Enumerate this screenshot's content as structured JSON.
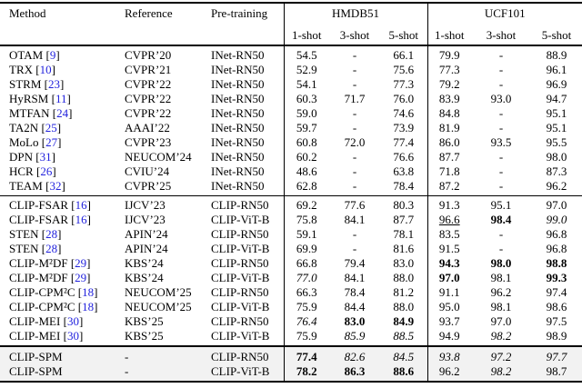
{
  "table": {
    "colors": {
      "cite": "#2222dd",
      "highlight": "#f2f2f2"
    },
    "columns": [
      "Method",
      "Reference",
      "Pre-training"
    ],
    "groups": [
      {
        "label": "HMDB51",
        "shots": [
          "1-shot",
          "3-shot",
          "5-shot"
        ]
      },
      {
        "label": "UCF101",
        "shots": [
          "1-shot",
          "3-shot",
          "5-shot"
        ]
      }
    ],
    "sections": [
      {
        "highlight": false,
        "rows": [
          {
            "method": "OTAM",
            "cite": "9",
            "reference": "CVPR’20",
            "pretraining": "INet-RN50",
            "values": [
              {
                "t": "54.5"
              },
              {
                "t": "-"
              },
              {
                "t": "66.1"
              },
              {
                "t": "79.9"
              },
              {
                "t": "-"
              },
              {
                "t": "88.9"
              }
            ]
          },
          {
            "method": "TRX",
            "cite": "10",
            "reference": "CVPR’21",
            "pretraining": "INet-RN50",
            "values": [
              {
                "t": "52.9"
              },
              {
                "t": "-"
              },
              {
                "t": "75.6"
              },
              {
                "t": "77.3"
              },
              {
                "t": "-"
              },
              {
                "t": "96.1"
              }
            ]
          },
          {
            "method": "STRM",
            "cite": "23",
            "reference": "CVPR’22",
            "pretraining": "INet-RN50",
            "values": [
              {
                "t": "54.1"
              },
              {
                "t": "-"
              },
              {
                "t": "77.3"
              },
              {
                "t": "79.2"
              },
              {
                "t": "-"
              },
              {
                "t": "96.9"
              }
            ]
          },
          {
            "method": "HyRSM",
            "cite": "11",
            "reference": "CVPR’22",
            "pretraining": "INet-RN50",
            "values": [
              {
                "t": "60.3"
              },
              {
                "t": "71.7"
              },
              {
                "t": "76.0"
              },
              {
                "t": "83.9"
              },
              {
                "t": "93.0"
              },
              {
                "t": "94.7"
              }
            ]
          },
          {
            "method": "MTFAN",
            "cite": "24",
            "reference": "CVPR’22",
            "pretraining": "INet-RN50",
            "values": [
              {
                "t": "59.0"
              },
              {
                "t": "-"
              },
              {
                "t": "74.6"
              },
              {
                "t": "84.8"
              },
              {
                "t": "-"
              },
              {
                "t": "95.1"
              }
            ]
          },
          {
            "method": "TA2N",
            "cite": "25",
            "reference": "AAAI’22",
            "pretraining": "INet-RN50",
            "values": [
              {
                "t": "59.7"
              },
              {
                "t": "-"
              },
              {
                "t": "73.9"
              },
              {
                "t": "81.9"
              },
              {
                "t": "-"
              },
              {
                "t": "95.1"
              }
            ]
          },
          {
            "method": "MoLo",
            "cite": "27",
            "reference": "CVPR’23",
            "pretraining": "INet-RN50",
            "values": [
              {
                "t": "60.8"
              },
              {
                "t": "72.0"
              },
              {
                "t": "77.4"
              },
              {
                "t": "86.0"
              },
              {
                "t": "93.5"
              },
              {
                "t": "95.5"
              }
            ]
          },
          {
            "method": "DPN",
            "cite": "31",
            "reference": "NEUCOM’24",
            "pretraining": "INet-RN50",
            "values": [
              {
                "t": "60.2"
              },
              {
                "t": "-"
              },
              {
                "t": "76.6"
              },
              {
                "t": "87.7"
              },
              {
                "t": "-"
              },
              {
                "t": "98.0"
              }
            ]
          },
          {
            "method": "HCR",
            "cite": "26",
            "reference": "CVIU’24",
            "pretraining": "INet-RN50",
            "values": [
              {
                "t": "48.6"
              },
              {
                "t": "-"
              },
              {
                "t": "63.8"
              },
              {
                "t": "71.8"
              },
              {
                "t": "-"
              },
              {
                "t": "87.3"
              }
            ]
          },
          {
            "method": "TEAM",
            "cite": "32",
            "reference": "CVPR’25",
            "pretraining": "INet-RN50",
            "values": [
              {
                "t": "62.8"
              },
              {
                "t": "-"
              },
              {
                "t": "78.4"
              },
              {
                "t": "87.2"
              },
              {
                "t": "-"
              },
              {
                "t": "96.2"
              }
            ]
          }
        ]
      },
      {
        "highlight": false,
        "rows": [
          {
            "method": "CLIP-FSAR",
            "cite": "16",
            "reference": "IJCV’23",
            "pretraining": "CLIP-RN50",
            "values": [
              {
                "t": "69.2"
              },
              {
                "t": "77.6"
              },
              {
                "t": "80.3"
              },
              {
                "t": "91.3"
              },
              {
                "t": "95.1"
              },
              {
                "t": "97.0"
              }
            ]
          },
          {
            "method": "CLIP-FSAR",
            "cite": "16",
            "reference": "IJCV’23",
            "pretraining": "CLIP-ViT-B",
            "values": [
              {
                "t": "75.8"
              },
              {
                "t": "84.1"
              },
              {
                "t": "87.7"
              },
              {
                "t": "96.6",
                "s": "u"
              },
              {
                "t": "98.4",
                "s": "b"
              },
              {
                "t": "99.0",
                "s": "i"
              }
            ]
          },
          {
            "method": "STEN",
            "cite": "28",
            "reference": "APIN’24",
            "pretraining": "CLIP-RN50",
            "values": [
              {
                "t": "59.1"
              },
              {
                "t": "-"
              },
              {
                "t": "78.1"
              },
              {
                "t": "83.5"
              },
              {
                "t": "-"
              },
              {
                "t": "96.8"
              }
            ]
          },
          {
            "method": "STEN",
            "cite": "28",
            "reference": "APIN’24",
            "pretraining": "CLIP-ViT-B",
            "values": [
              {
                "t": "69.9"
              },
              {
                "t": "-"
              },
              {
                "t": "81.6"
              },
              {
                "t": "91.5"
              },
              {
                "t": "-"
              },
              {
                "t": "96.8"
              }
            ]
          },
          {
            "method": "CLIP-M²DF",
            "cite": "29",
            "reference": "KBS’24",
            "pretraining": "CLIP-RN50",
            "values": [
              {
                "t": "66.8"
              },
              {
                "t": "79.4"
              },
              {
                "t": "83.0"
              },
              {
                "t": "94.3",
                "s": "b"
              },
              {
                "t": "98.0",
                "s": "b"
              },
              {
                "t": "98.8",
                "s": "b"
              }
            ]
          },
          {
            "method": "CLIP-M²DF",
            "cite": "29",
            "reference": "KBS’24",
            "pretraining": "CLIP-ViT-B",
            "values": [
              {
                "t": "77.0",
                "s": "i"
              },
              {
                "t": "84.1"
              },
              {
                "t": "88.0"
              },
              {
                "t": "97.0",
                "s": "b"
              },
              {
                "t": "98.1"
              },
              {
                "t": "99.3",
                "s": "b"
              }
            ]
          },
          {
            "method": "CLIP-CPM²C",
            "cite": "18",
            "reference": "NEUCOM’25",
            "pretraining": "CLIP-RN50",
            "values": [
              {
                "t": "66.3"
              },
              {
                "t": "78.4"
              },
              {
                "t": "81.2"
              },
              {
                "t": "91.1"
              },
              {
                "t": "96.2"
              },
              {
                "t": "97.4"
              }
            ]
          },
          {
            "method": "CLIP-CPM²C",
            "cite": "18",
            "reference": "NEUCOM’25",
            "pretraining": "CLIP-ViT-B",
            "values": [
              {
                "t": "75.9"
              },
              {
                "t": "84.4"
              },
              {
                "t": "88.0"
              },
              {
                "t": "95.0"
              },
              {
                "t": "98.1"
              },
              {
                "t": "98.6"
              }
            ]
          },
          {
            "method": "CLIP-MEI",
            "cite": "30",
            "reference": "KBS’25",
            "pretraining": "CLIP-RN50",
            "values": [
              {
                "t": "76.4",
                "s": "i"
              },
              {
                "t": "83.0",
                "s": "b"
              },
              {
                "t": "84.9",
                "s": "b"
              },
              {
                "t": "93.7"
              },
              {
                "t": "97.0"
              },
              {
                "t": "97.5"
              }
            ]
          },
          {
            "method": "CLIP-MEI",
            "cite": "30",
            "reference": "KBS’25",
            "pretraining": "CLIP-ViT-B",
            "values": [
              {
                "t": "75.9"
              },
              {
                "t": "85.9",
                "s": "i"
              },
              {
                "t": "88.5",
                "s": "i"
              },
              {
                "t": "94.9"
              },
              {
                "t": "98.2",
                "s": "i"
              },
              {
                "t": "98.9"
              }
            ]
          }
        ]
      },
      {
        "highlight": true,
        "rows": [
          {
            "method": "CLIP-SPM",
            "cite": null,
            "reference": "-",
            "pretraining": "CLIP-RN50",
            "values": [
              {
                "t": "77.4",
                "s": "b"
              },
              {
                "t": "82.6",
                "s": "i"
              },
              {
                "t": "84.5",
                "s": "i"
              },
              {
                "t": "93.8",
                "s": "i"
              },
              {
                "t": "97.2",
                "s": "i"
              },
              {
                "t": "97.7",
                "s": "i"
              }
            ]
          },
          {
            "method": "CLIP-SPM",
            "cite": null,
            "reference": "-",
            "pretraining": "CLIP-ViT-B",
            "values": [
              {
                "t": "78.2",
                "s": "b"
              },
              {
                "t": "86.3",
                "s": "b"
              },
              {
                "t": "88.6",
                "s": "b"
              },
              {
                "t": "96.2"
              },
              {
                "t": "98.2",
                "s": "i"
              },
              {
                "t": "98.7"
              }
            ]
          }
        ]
      }
    ]
  }
}
